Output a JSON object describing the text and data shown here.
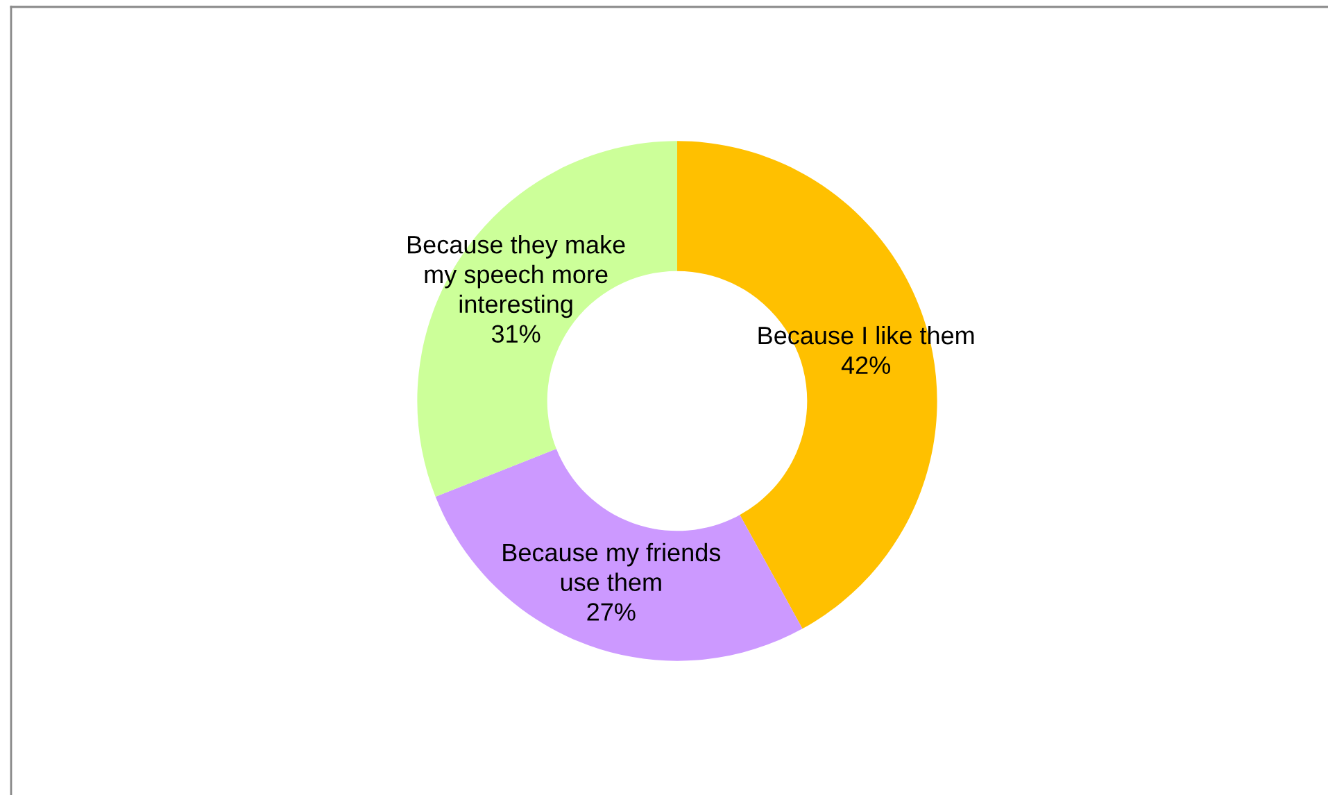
{
  "chart_data": {
    "type": "donut",
    "categories": [
      "Because I like them",
      "Because my friends\nuse them",
      "Because they make\nmy speech more\ninteresting"
    ],
    "values": [
      42,
      27,
      31
    ],
    "colors": [
      "#ffc000",
      "#cc99ff",
      "#ccff99"
    ],
    "value_labels": [
      "42%",
      "27%",
      "31%"
    ],
    "legend": false
  }
}
